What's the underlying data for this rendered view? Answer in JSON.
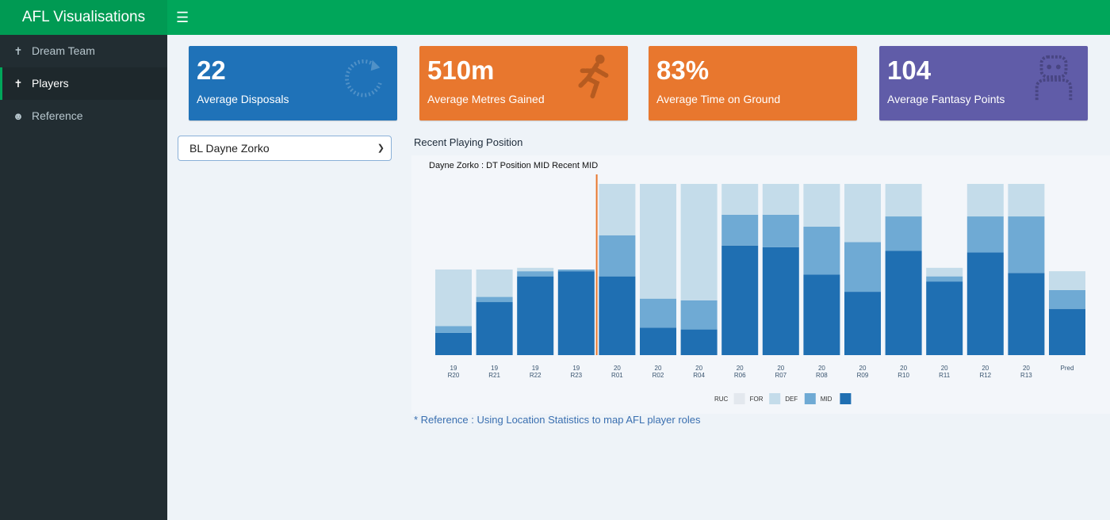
{
  "app": {
    "title": "AFL Visualisations"
  },
  "sidebar": {
    "items": [
      {
        "label": "Dream Team",
        "icon": "person-icon"
      },
      {
        "label": "Players",
        "icon": "person-icon"
      },
      {
        "label": "Reference",
        "icon": "smile-icon"
      }
    ],
    "active": "Players"
  },
  "value_boxes": [
    {
      "value": "22",
      "label": "Average Disposals",
      "color": "#1f72b8",
      "icon": "refresh-icon"
    },
    {
      "value": "510m",
      "label": "Average Metres Gained",
      "color": "#e8772e",
      "icon": "running-icon"
    },
    {
      "value": "83%",
      "label": "Average Time on Ground",
      "color": "#e8772e",
      "icon": ""
    },
    {
      "value": "104",
      "label": "Average Fantasy Points",
      "color": "#605ca8",
      "icon": "robot-icon"
    }
  ],
  "player_select": {
    "value": "BL Dayne Zorko"
  },
  "chart_section": {
    "title": "Recent Playing Position"
  },
  "reference": {
    "text": "* Reference : Using Location Statistics to map AFL player roles"
  },
  "chart_data": {
    "type": "bar",
    "stacked": true,
    "title": "Dayne Zorko : DT Position MID   Recent MID",
    "categories": [
      [
        "19",
        "R20"
      ],
      [
        "19",
        "R21"
      ],
      [
        "19",
        "R22"
      ],
      [
        "19",
        "R23"
      ],
      [
        "20",
        "R01"
      ],
      [
        "20",
        "R02"
      ],
      [
        "20",
        "R04"
      ],
      [
        "20",
        "R06"
      ],
      [
        "20",
        "R07"
      ],
      [
        "20",
        "R08"
      ],
      [
        "20",
        "R09"
      ],
      [
        "20",
        "R10"
      ],
      [
        "20",
        "R11"
      ],
      [
        "20",
        "R12"
      ],
      [
        "20",
        "R13"
      ],
      [
        "Pred"
      ]
    ],
    "series": [
      {
        "name": "MID",
        "color": "#1f6fb2",
        "values": [
          13,
          31,
          46,
          49,
          46,
          16,
          15,
          64,
          63,
          47,
          37,
          61,
          43,
          60,
          48,
          27
        ]
      },
      {
        "name": "DEF",
        "color": "#6faad4",
        "values": [
          4,
          3,
          3,
          1,
          24,
          17,
          17,
          18,
          19,
          28,
          29,
          20,
          3,
          21,
          33,
          11
        ]
      },
      {
        "name": "FOR",
        "color": "#c4dcea",
        "values": [
          33,
          16,
          2,
          0,
          30,
          67,
          68,
          18,
          18,
          25,
          34,
          19,
          5,
          19,
          19,
          11
        ]
      },
      {
        "name": "RUC",
        "color": "#e3e8ee",
        "values": [
          0,
          0,
          0,
          0,
          0,
          0,
          0,
          0,
          0,
          0,
          0,
          0,
          0,
          0,
          0,
          0
        ]
      }
    ],
    "ylim": [
      0,
      100
    ],
    "divider_after_index": 3,
    "divider_color": "#e8772e",
    "legend": [
      "RUC",
      "FOR",
      "DEF",
      "MID"
    ],
    "legend_placement": "bottom"
  }
}
